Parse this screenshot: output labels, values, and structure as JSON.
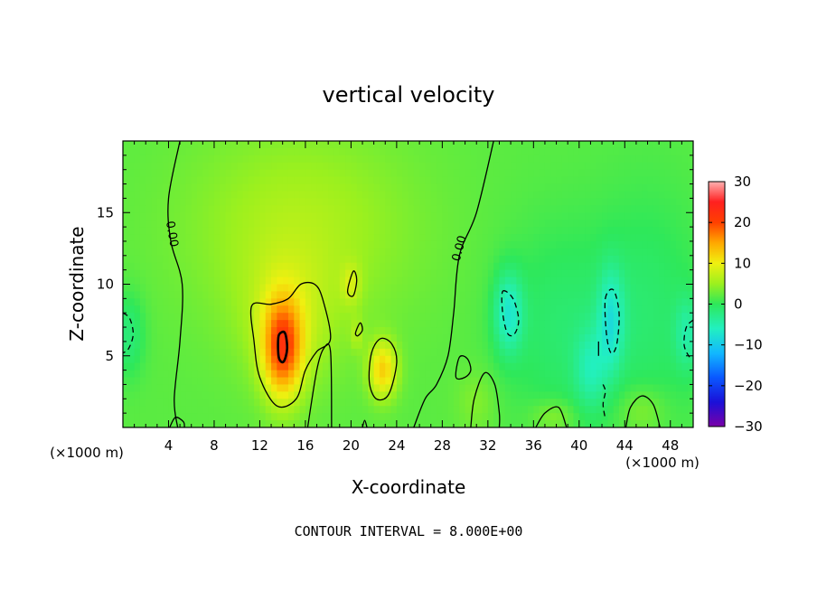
{
  "chart_data": {
    "type": "heatmap",
    "title": "vertical velocity",
    "xlabel": "X-coordinate",
    "ylabel": "Z-coordinate",
    "x_unit_left": "(×1000 m)",
    "x_unit_right": "(×1000 m)",
    "xlim": [
      0,
      50
    ],
    "ylim": [
      0,
      20
    ],
    "x_ticks": [
      4,
      8,
      12,
      16,
      20,
      24,
      28,
      32,
      36,
      40,
      44,
      48
    ],
    "y_ticks": [
      5,
      10,
      15
    ],
    "colorbar": {
      "range": [
        -30,
        30
      ],
      "ticks": [
        "30",
        "20",
        "10",
        "0",
        "−10",
        "−20",
        "−30"
      ],
      "tick_values": [
        30,
        20,
        10,
        0,
        -10,
        -20,
        -30
      ],
      "stops": [
        {
          "v": -30,
          "color": "#7a00a8"
        },
        {
          "v": -24,
          "color": "#1a10d8"
        },
        {
          "v": -18,
          "color": "#0a58ff"
        },
        {
          "v": -12,
          "color": "#12b8ff"
        },
        {
          "v": -6,
          "color": "#22f0c0"
        },
        {
          "v": 0,
          "color": "#2ee85a"
        },
        {
          "v": 5,
          "color": "#9cf01e"
        },
        {
          "v": 10,
          "color": "#f0f010"
        },
        {
          "v": 15,
          "color": "#ffa800"
        },
        {
          "v": 20,
          "color": "#ff4000"
        },
        {
          "v": 25,
          "color": "#ff2020"
        },
        {
          "v": 30,
          "color": "#ffb0b0"
        }
      ]
    },
    "background_value": 2,
    "features": [
      {
        "x": 14,
        "z": 5.5,
        "sx": 1.2,
        "sz": 2.4,
        "amp": 16
      },
      {
        "x": 14.5,
        "z": 7.5,
        "sx": 3.0,
        "sz": 3.5,
        "amp": 4
      },
      {
        "x": 15.5,
        "z": 14,
        "sx": 7,
        "sz": 5,
        "amp": 4
      },
      {
        "x": 22.8,
        "z": 4.0,
        "sx": 0.9,
        "sz": 1.4,
        "amp": 10
      },
      {
        "x": 20,
        "z": 10,
        "sx": 0.6,
        "sz": 1.0,
        "amp": 4
      },
      {
        "x": 20.5,
        "z": 6.5,
        "sx": 0.4,
        "sz": 0.8,
        "amp": 3
      },
      {
        "x": 31,
        "z": 1.8,
        "sx": 1.2,
        "sz": 1.5,
        "amp": 2
      },
      {
        "x": 33.8,
        "z": 8,
        "sx": 0.9,
        "sz": 2.0,
        "amp": -8
      },
      {
        "x": 42.8,
        "z": 7.5,
        "sx": 0.8,
        "sz": 2.5,
        "amp": -7
      },
      {
        "x": 41,
        "z": 4,
        "sx": 1.0,
        "sz": 2.0,
        "amp": -5
      },
      {
        "x": 38,
        "z": 7,
        "sx": 3.5,
        "sz": 5,
        "amp": -3
      },
      {
        "x": 46,
        "z": 8,
        "sx": 3.5,
        "sz": 6,
        "amp": -3
      },
      {
        "x": 49.5,
        "z": 6.5,
        "sx": 0.8,
        "sz": 1.8,
        "amp": -5
      },
      {
        "x": 0.5,
        "z": 6.5,
        "sx": 1.0,
        "sz": 2.0,
        "amp": -4
      },
      {
        "x": 45.5,
        "z": 1.2,
        "sx": 1.5,
        "sz": 1.2,
        "amp": 3
      },
      {
        "x": 37.8,
        "z": 0.8,
        "sx": 1.4,
        "sz": 0.8,
        "amp": 3
      }
    ],
    "contour_interval_label": "CONTOUR INTERVAL = 8.000E+00",
    "contour_labels": [
      {
        "text": "0.00",
        "x": 4.3,
        "z": 13.5,
        "angle": 80
      },
      {
        "text": "0.00",
        "x": 29.5,
        "z": 12.5,
        "angle": -75
      }
    ],
    "contours": [
      {
        "kind": "solid",
        "pts": [
          [
            5,
            20
          ],
          [
            4,
            16
          ],
          [
            4.2,
            13
          ],
          [
            5.2,
            10
          ],
          [
            5,
            6
          ],
          [
            4.5,
            2
          ],
          [
            4.8,
            0
          ]
        ]
      },
      {
        "kind": "solid",
        "pts": [
          [
            32.5,
            20
          ],
          [
            31,
            15
          ],
          [
            29.5,
            12
          ],
          [
            29,
            8
          ],
          [
            28.5,
            5
          ],
          [
            27.5,
            3
          ],
          [
            26.5,
            2
          ],
          [
            25.5,
            0
          ]
        ]
      },
      {
        "kind": "solid_closed",
        "pts": [
          [
            11.3,
            8.5
          ],
          [
            11.5,
            6
          ],
          [
            12,
            3.5
          ],
          [
            13.5,
            1.5
          ],
          [
            15.2,
            2
          ],
          [
            16,
            4
          ],
          [
            17,
            5.3
          ],
          [
            18.2,
            6.2
          ],
          [
            17.5,
            9
          ],
          [
            16.8,
            10
          ],
          [
            15.6,
            10
          ],
          [
            14.5,
            9
          ],
          [
            13,
            8.6
          ]
        ]
      },
      {
        "kind": "bold_closed",
        "pts": [
          [
            13.7,
            6.5
          ],
          [
            14.2,
            6.6
          ],
          [
            14.4,
            5.5
          ],
          [
            14.1,
            4.6
          ],
          [
            13.7,
            4.8
          ],
          [
            13.6,
            5.8
          ]
        ]
      },
      {
        "kind": "solid_closed",
        "pts": [
          [
            21.8,
            5.2
          ],
          [
            22.6,
            6.2
          ],
          [
            23.6,
            5.8
          ],
          [
            24,
            4.5
          ],
          [
            23.3,
            2.3
          ],
          [
            22.2,
            2
          ],
          [
            21.6,
            3.2
          ]
        ]
      },
      {
        "kind": "solid_closed",
        "pts": [
          [
            19.7,
            9.5
          ],
          [
            20.2,
            10.9
          ],
          [
            20.5,
            10.3
          ],
          [
            20.2,
            9.2
          ]
        ]
      },
      {
        "kind": "solid_closed",
        "pts": [
          [
            20.4,
            6.6
          ],
          [
            20.8,
            7.3
          ],
          [
            21,
            6.8
          ],
          [
            20.6,
            6.4
          ]
        ]
      },
      {
        "kind": "solid",
        "pts": [
          [
            16.2,
            0
          ],
          [
            17,
            4
          ],
          [
            17.6,
            5.5
          ],
          [
            18.2,
            5.3
          ],
          [
            18.3,
            0
          ]
        ]
      },
      {
        "kind": "solid",
        "pts": [
          [
            30.5,
            0
          ],
          [
            30.8,
            2
          ],
          [
            31.7,
            3.8
          ],
          [
            32.6,
            3
          ],
          [
            33,
            1
          ],
          [
            33,
            0
          ]
        ]
      },
      {
        "kind": "solid_closed",
        "pts": [
          [
            29.2,
            3.5
          ],
          [
            29.5,
            4.9
          ],
          [
            30.2,
            4.8
          ],
          [
            30.5,
            4
          ],
          [
            30,
            3.5
          ]
        ]
      },
      {
        "kind": "solid",
        "pts": [
          [
            36.2,
            0
          ],
          [
            37,
            1
          ],
          [
            38.2,
            1.4
          ],
          [
            38.9,
            0
          ]
        ]
      },
      {
        "kind": "solid",
        "pts": [
          [
            44.1,
            0
          ],
          [
            44.5,
            1.4
          ],
          [
            45.5,
            2.2
          ],
          [
            46.5,
            1.6
          ],
          [
            47.1,
            0
          ]
        ]
      },
      {
        "kind": "solid",
        "pts": [
          [
            4.1,
            0
          ],
          [
            4.6,
            0.7
          ],
          [
            5.3,
            0.4
          ],
          [
            5.4,
            0
          ]
        ]
      },
      {
        "kind": "solid",
        "pts": [
          [
            21,
            0
          ],
          [
            21.2,
            0.5
          ],
          [
            21.4,
            0
          ]
        ]
      },
      {
        "kind": "dashed_closed",
        "pts": [
          [
            33.3,
            9.5
          ],
          [
            34.2,
            9
          ],
          [
            34.7,
            7.5
          ],
          [
            34.3,
            6.5
          ],
          [
            33.7,
            6.6
          ],
          [
            33.3,
            8
          ]
        ]
      },
      {
        "kind": "dashed_closed",
        "pts": [
          [
            42.3,
            9
          ],
          [
            43,
            9.6
          ],
          [
            43.5,
            8
          ],
          [
            43.3,
            5.8
          ],
          [
            42.8,
            5.2
          ],
          [
            42.4,
            6.5
          ]
        ]
      },
      {
        "kind": "dashed",
        "pts": [
          [
            0,
            8
          ],
          [
            0.6,
            7.6
          ],
          [
            0.9,
            6.5
          ],
          [
            0.5,
            5.5
          ],
          [
            0,
            5.2
          ]
        ]
      },
      {
        "kind": "dashed",
        "pts": [
          [
            50,
            7.5
          ],
          [
            49.4,
            7
          ],
          [
            49.2,
            5.8
          ],
          [
            49.6,
            5
          ],
          [
            50,
            4.8
          ]
        ]
      },
      {
        "kind": "dashed",
        "pts": [
          [
            42.1,
            3
          ],
          [
            42.3,
            2.5
          ],
          [
            42.1,
            1.6
          ],
          [
            42.3,
            0.6
          ]
        ]
      },
      {
        "kind": "solid",
        "pts": [
          [
            41.7,
            6
          ],
          [
            41.7,
            5
          ]
        ]
      }
    ]
  }
}
